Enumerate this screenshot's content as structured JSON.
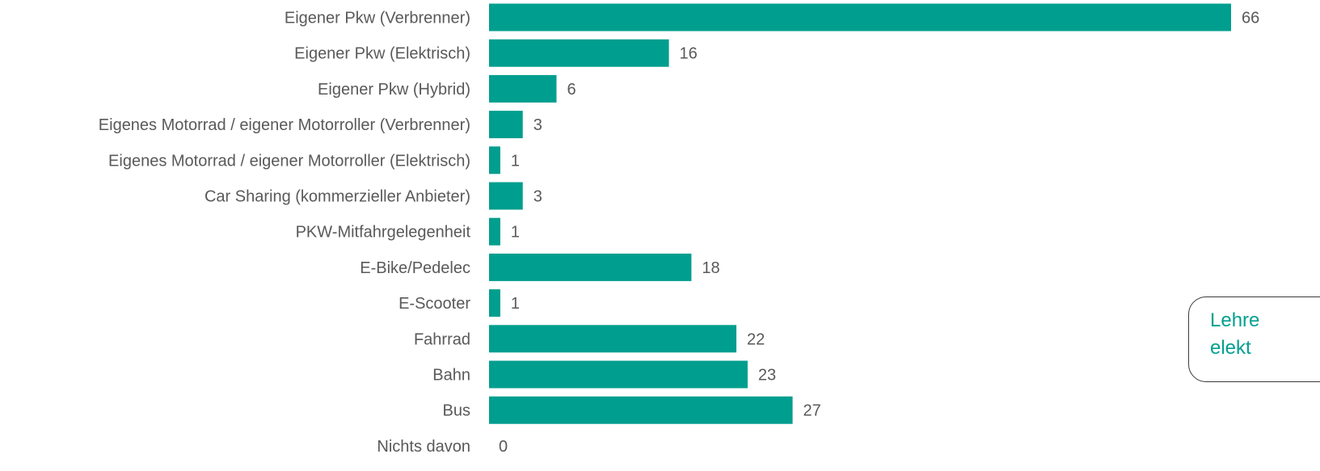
{
  "chart_data": {
    "type": "bar",
    "orientation": "horizontal",
    "categories": [
      "Eigener Pkw (Verbrenner)",
      "Eigener Pkw (Elektrisch)",
      "Eigener Pkw (Hybrid)",
      "Eigenes Motorrad / eigener Motorroller (Verbrenner)",
      "Eigenes Motorrad / eigener Motorroller (Elektrisch)",
      "Car Sharing (kommerzieller Anbieter)",
      "PKW-Mitfahrgelegenheit",
      "E-Bike/Pedelec",
      "E-Scooter",
      "Fahrrad",
      "Bahn",
      "Bus",
      "Nichts davon"
    ],
    "values": [
      66,
      16,
      6,
      3,
      1,
      3,
      1,
      18,
      1,
      22,
      23,
      27,
      0
    ],
    "xlim": [
      0,
      66
    ],
    "grid": false,
    "bar_color": "#009e8e",
    "label_color": "#595959"
  },
  "callout": {
    "line1": "Lehre",
    "line2": "elekt",
    "text_color": "#00a08f"
  }
}
